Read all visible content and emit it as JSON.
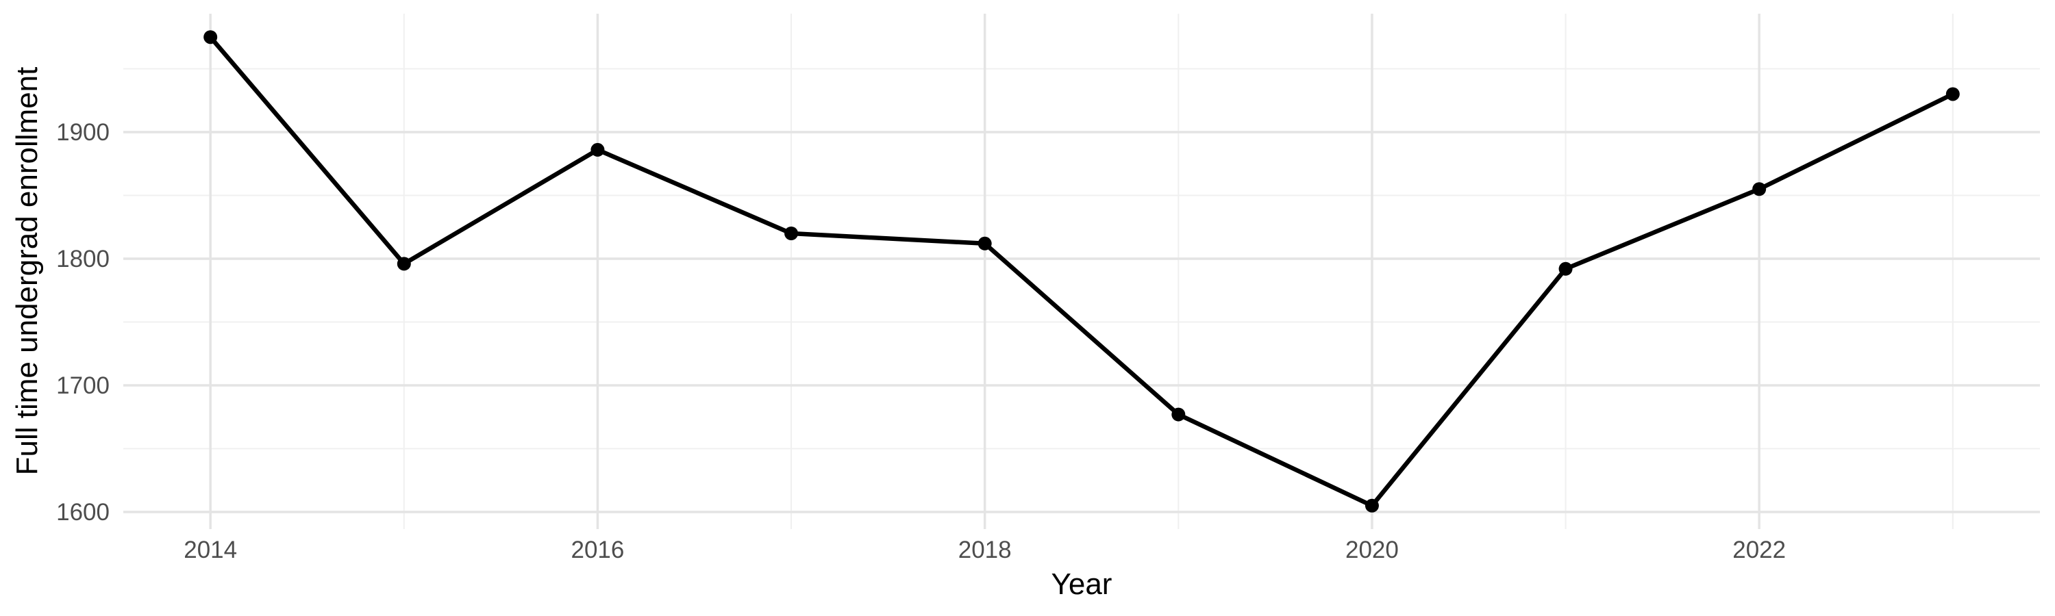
{
  "chart_data": {
    "type": "line",
    "title": "",
    "xlabel": "Year",
    "ylabel": "Full time undergrad enrollment",
    "x": [
      2014,
      2015,
      2016,
      2017,
      2018,
      2019,
      2020,
      2021,
      2022,
      2023
    ],
    "series": [
      {
        "name": "Full time undergrad enrollment",
        "values": [
          1975,
          1796,
          1886,
          1820,
          1812,
          1677,
          1605,
          1792,
          1855,
          1930
        ]
      }
    ],
    "xlim": [
      2013.55,
      2023.45
    ],
    "ylim": [
      1586.5,
      1993.5
    ],
    "x_ticks": {
      "positions": [
        2014,
        2016,
        2018,
        2020,
        2022
      ],
      "labels": [
        "2014",
        "2016",
        "2018",
        "2020",
        "2022"
      ],
      "minor_gridlines": [
        2015,
        2017,
        2019,
        2021,
        2023
      ]
    },
    "y_ticks": {
      "positions": [
        1600,
        1700,
        1800,
        1900
      ],
      "labels": [
        "1600",
        "1700",
        "1800",
        "1900"
      ],
      "minor_gridlines": [
        1650,
        1750,
        1850,
        1950
      ]
    },
    "grid": {
      "on": true,
      "major_color": "#E4E4E4",
      "minor_color": "#F0F0F0"
    },
    "legend": "none",
    "colors": {
      "line": "#000000",
      "point": "#000000",
      "axis_text": "#4D4D4D",
      "axis_title": "#000000",
      "background": "#FFFFFF"
    }
  }
}
